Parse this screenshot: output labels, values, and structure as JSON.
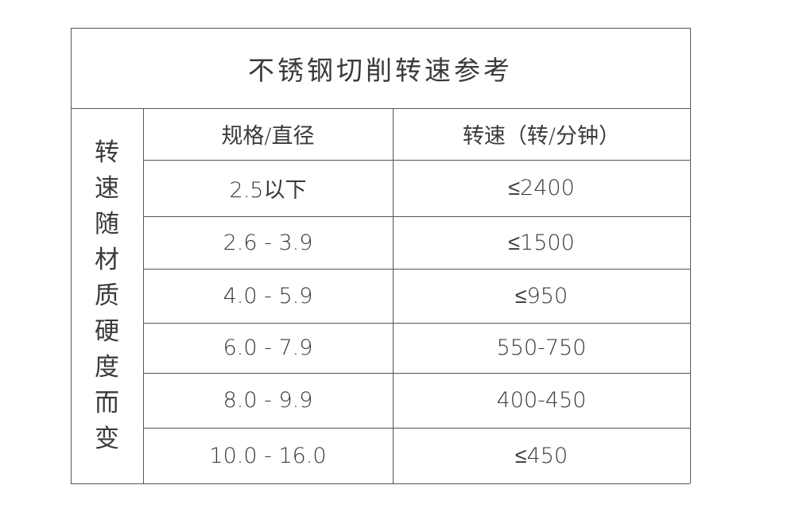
{
  "title": "不锈钢切削转速参考",
  "side_label": [
    "转",
    "速",
    "随",
    "材",
    "质",
    "硬",
    "度",
    "而",
    "变"
  ],
  "headers": [
    "规格/直径",
    "转速（转/分钟）"
  ],
  "rows": [
    [
      "2.5以下",
      "≤2400"
    ],
    [
      "2.6 - 3.9",
      "≤1500"
    ],
    [
      "4.0 - 5.9",
      "≤950"
    ],
    [
      "6.0 - 7.9",
      "550-750"
    ],
    [
      "8.0 - 9.9",
      "400-450"
    ],
    [
      "10.0 - 16.0",
      "≤450"
    ]
  ]
}
